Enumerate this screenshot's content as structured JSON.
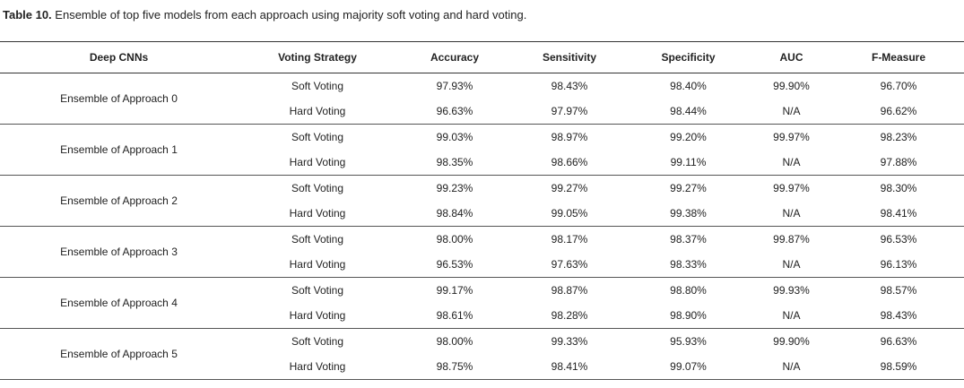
{
  "caption": {
    "label": "Table 10.",
    "text": " Ensemble of top five models from each approach using majority soft voting and hard voting."
  },
  "headers": [
    "Deep CNNs",
    "Voting Strategy",
    "Accuracy",
    "Sensitivity",
    "Specificity",
    "AUC",
    "F-Measure"
  ],
  "rows": [
    {
      "model": "Ensemble of Approach 0",
      "soft": {
        "strategy": "Soft Voting",
        "accuracy": "97.93%",
        "sensitivity": "98.43%",
        "specificity": "98.40%",
        "auc": "99.90%",
        "fmeasure": "96.70%"
      },
      "hard": {
        "strategy": "Hard Voting",
        "accuracy": "96.63%",
        "sensitivity": "97.97%",
        "specificity": "98.44%",
        "auc": "N/A",
        "fmeasure": "96.62%"
      }
    },
    {
      "model": "Ensemble of Approach 1",
      "soft": {
        "strategy": "Soft Voting",
        "accuracy": "99.03%",
        "sensitivity": "98.97%",
        "specificity": "99.20%",
        "auc": "99.97%",
        "fmeasure": "98.23%"
      },
      "hard": {
        "strategy": "Hard Voting",
        "accuracy": "98.35%",
        "sensitivity": "98.66%",
        "specificity": "99.11%",
        "auc": "N/A",
        "fmeasure": "97.88%"
      }
    },
    {
      "model": "Ensemble of Approach 2",
      "soft": {
        "strategy": "Soft Voting",
        "accuracy": "99.23%",
        "sensitivity": "99.27%",
        "specificity": "99.27%",
        "auc": "99.97%",
        "fmeasure": "98.30%"
      },
      "hard": {
        "strategy": "Hard Voting",
        "accuracy": "98.84%",
        "sensitivity": "99.05%",
        "specificity": "99.38%",
        "auc": "N/A",
        "fmeasure": "98.41%"
      }
    },
    {
      "model": "Ensemble of Approach 3",
      "soft": {
        "strategy": "Soft Voting",
        "accuracy": "98.00%",
        "sensitivity": "98.17%",
        "specificity": "98.37%",
        "auc": "99.87%",
        "fmeasure": "96.53%"
      },
      "hard": {
        "strategy": "Hard Voting",
        "accuracy": "96.53%",
        "sensitivity": "97.63%",
        "specificity": "98.33%",
        "auc": "N/A",
        "fmeasure": "96.13%"
      }
    },
    {
      "model": "Ensemble of Approach 4",
      "soft": {
        "strategy": "Soft Voting",
        "accuracy": "99.17%",
        "sensitivity": "98.87%",
        "specificity": "98.80%",
        "auc": "99.93%",
        "fmeasure": "98.57%"
      },
      "hard": {
        "strategy": "Hard Voting",
        "accuracy": "98.61%",
        "sensitivity": "98.28%",
        "specificity": "98.90%",
        "auc": "N/A",
        "fmeasure": "98.43%"
      }
    },
    {
      "model": "Ensemble of Approach 5",
      "soft": {
        "strategy": "Soft Voting",
        "accuracy": "98.00%",
        "sensitivity": "99.33%",
        "specificity": "95.93%",
        "auc": "99.90%",
        "fmeasure": "96.63%"
      },
      "hard": {
        "strategy": "Hard Voting",
        "accuracy": "98.75%",
        "sensitivity": "98.41%",
        "specificity": "99.07%",
        "auc": "N/A",
        "fmeasure": "98.59%"
      }
    }
  ]
}
